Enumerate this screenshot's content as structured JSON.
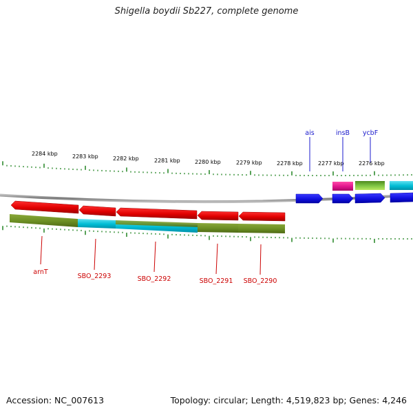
{
  "title": "Shigella boydii Sb227, complete genome",
  "accession_text": "Accession: NC_007613",
  "summary_text": "Topology: circular; Length: 4,519,823 bp; Genes: 4,246",
  "scale_labels": [
    "2284 kbp",
    "2283 kbp",
    "2282 kbp",
    "2281 kbp",
    "2280 kbp",
    "2279 kbp",
    "2278 kbp",
    "2277 kbp",
    "2276 kbp"
  ],
  "top_gene_labels": [
    "ais",
    "insB",
    "ycbF"
  ],
  "bottom_gene_labels": [
    "arnT",
    "SBO_2293",
    "SBO_2292",
    "SBO_2291",
    "SBO_2290"
  ],
  "colors": {
    "backbone": "#7f7f7f",
    "tick": "#2e8b2e",
    "forward_cds": "#1010e0",
    "reverse_cds": "#e00000",
    "olive": "#6b8e23",
    "cyan": "#00bcd4",
    "magenta": "#e0148c",
    "green": "#55aa22",
    "top_label": "#1a1acc",
    "bottom_label": "#cc0000"
  }
}
